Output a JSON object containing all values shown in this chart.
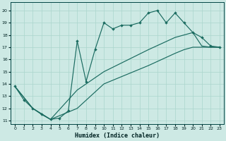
{
  "xlabel": "Humidex (Indice chaleur)",
  "xlim": [
    -0.5,
    23.5
  ],
  "ylim": [
    10.7,
    20.7
  ],
  "xticks": [
    0,
    1,
    2,
    3,
    4,
    5,
    6,
    7,
    8,
    9,
    10,
    11,
    12,
    13,
    14,
    15,
    16,
    17,
    18,
    19,
    20,
    21,
    22,
    23
  ],
  "yticks": [
    11,
    12,
    13,
    14,
    15,
    16,
    17,
    18,
    19,
    20
  ],
  "bg_color": "#cde9e4",
  "grid_color": "#aad5cc",
  "line_color": "#1a6b60",
  "line1_x": [
    0,
    1,
    2,
    3,
    4,
    5,
    6,
    7,
    8,
    9,
    10,
    11,
    12,
    13,
    14,
    15,
    16,
    17,
    18,
    19,
    20,
    21,
    22,
    23
  ],
  "line1_y": [
    13.8,
    12.7,
    12.0,
    11.5,
    11.1,
    11.2,
    11.8,
    17.5,
    14.2,
    16.8,
    19.0,
    18.5,
    18.8,
    18.8,
    19.0,
    19.8,
    20.0,
    19.0,
    19.8,
    19.0,
    18.2,
    17.8,
    17.1,
    17.0
  ],
  "line2_x": [
    0,
    2,
    4,
    7,
    10,
    15,
    18,
    19,
    20,
    21,
    22,
    23
  ],
  "line2_y": [
    13.8,
    12.0,
    11.1,
    13.5,
    15.0,
    16.8,
    17.8,
    18.0,
    18.2,
    17.1,
    17.0,
    17.0
  ],
  "line3_x": [
    0,
    2,
    4,
    7,
    10,
    15,
    18,
    19,
    20,
    21,
    22,
    23
  ],
  "line3_y": [
    13.8,
    12.0,
    11.1,
    12.0,
    14.0,
    15.5,
    16.5,
    16.8,
    17.0,
    17.0,
    17.0,
    17.0
  ]
}
